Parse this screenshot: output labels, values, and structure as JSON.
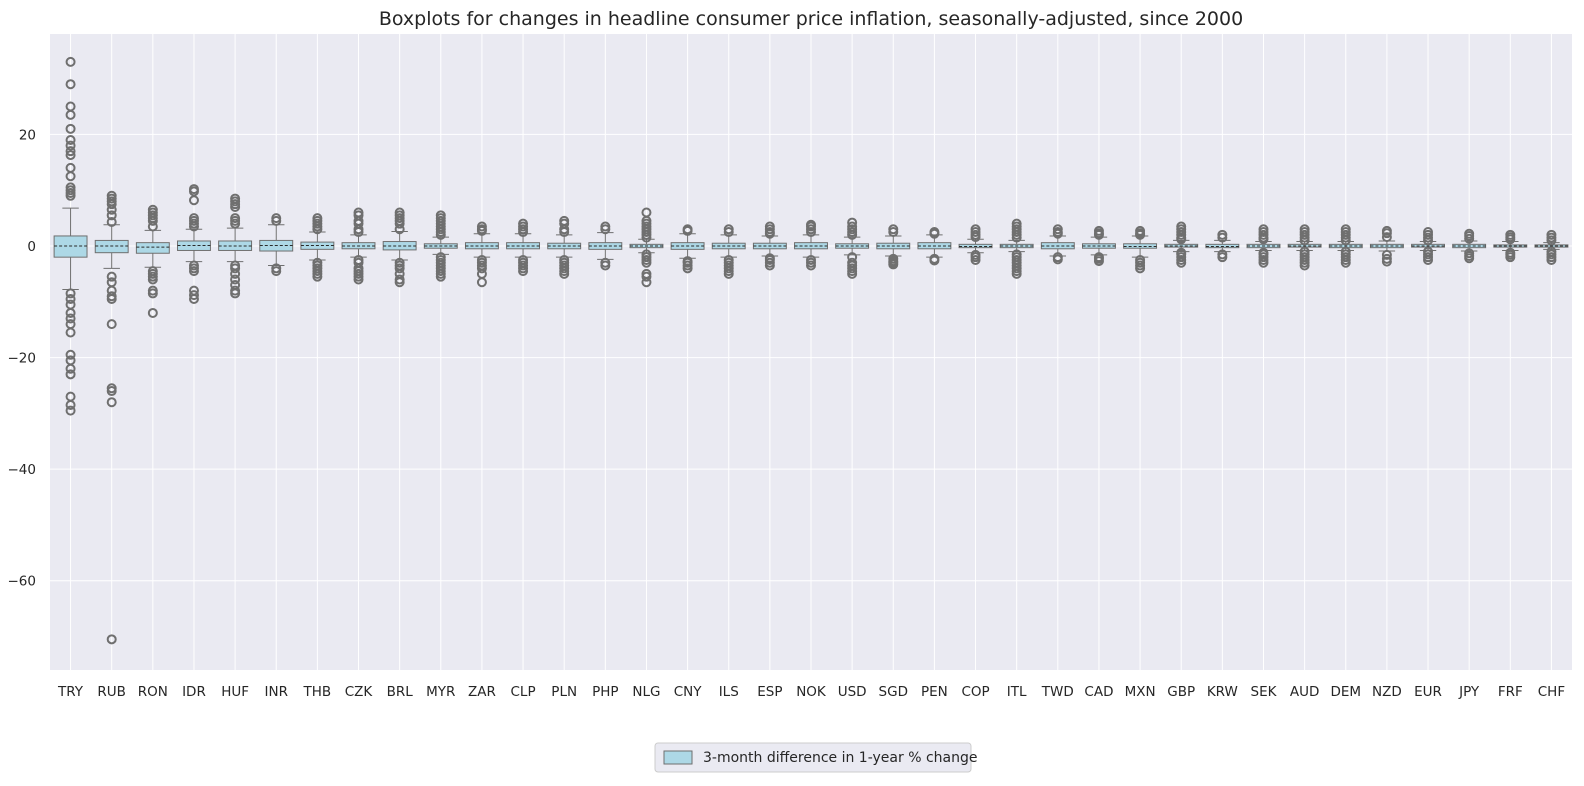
{
  "chart_data": {
    "type": "boxplot",
    "title": "Boxplots for changes in headline consumer price inflation, seasonally-adjusted, since 2000",
    "xlabel": "",
    "ylabel": "",
    "ylim": [
      -76,
      38
    ],
    "yticks": [
      20,
      0,
      -20,
      -40,
      -60
    ],
    "ytick_labels": [
      "20",
      "0",
      "−20",
      "−40",
      "−60"
    ],
    "grid": true,
    "legend": {
      "position": "bottom-center",
      "entries": [
        "3-month difference in 1-year % change"
      ]
    },
    "colors": {
      "box_fill": "#add8e6",
      "box_edge": "#6f6f6f",
      "outlier": "#6f6f6f",
      "median": "#2b2b2b",
      "background": "#eaeaf2",
      "grid": "#ffffff"
    },
    "categories": [
      "TRY",
      "RUB",
      "RON",
      "IDR",
      "HUF",
      "INR",
      "THB",
      "CZK",
      "BRL",
      "MYR",
      "ZAR",
      "CLP",
      "PLN",
      "PHP",
      "NLG",
      "CNY",
      "ILS",
      "ESP",
      "NOK",
      "USD",
      "SGD",
      "PEN",
      "COP",
      "ITL",
      "TWD",
      "CAD",
      "MXN",
      "GBP",
      "KRW",
      "SEK",
      "AUD",
      "DEM",
      "NZD",
      "EUR",
      "JPY",
      "FRF",
      "CHF"
    ],
    "series": [
      {
        "name": "3-month difference in 1-year % change",
        "boxes": [
          {
            "q1": -2.0,
            "median": 0.0,
            "q3": 1.8,
            "whislo": -7.8,
            "whishi": 6.8,
            "fliers": [
              33,
              29,
              25,
              23.5,
              21,
              19,
              18,
              17,
              16.3,
              14,
              12.5,
              10.5,
              10,
              9.5,
              9,
              -8.5,
              -9.5,
              -10.5,
              -12,
              -13,
              -14,
              -15.5,
              -19.5,
              -20.5,
              -22,
              -23,
              -27,
              -28.5,
              -29.5
            ]
          },
          {
            "q1": -1.2,
            "median": 0.0,
            "q3": 1.0,
            "whislo": -4.0,
            "whishi": 3.8,
            "fliers": [
              9,
              8.5,
              8,
              7.5,
              6.5,
              5.5,
              4.3,
              -5.5,
              -6.5,
              -8,
              -9,
              -9.5,
              -14,
              -25.5,
              -26,
              -28,
              -70.5
            ]
          },
          {
            "q1": -1.3,
            "median": -0.2,
            "q3": 0.6,
            "whislo": -3.8,
            "whishi": 2.8,
            "fliers": [
              6.5,
              6,
              5.5,
              5,
              4.5,
              3.5,
              -4.5,
              -5,
              -5.5,
              -6,
              -8,
              -8.5,
              -12
            ]
          },
          {
            "q1": -0.8,
            "median": 0.1,
            "q3": 0.9,
            "whislo": -2.8,
            "whishi": 3.0,
            "fliers": [
              10.2,
              9.8,
              8.2,
              5,
              4.5,
              4,
              3.5,
              -3.5,
              -4,
              -4.5,
              -8,
              -8.8,
              -9.5
            ]
          },
          {
            "q1": -0.8,
            "median": 0.0,
            "q3": 0.9,
            "whislo": -2.8,
            "whishi": 3.2,
            "fliers": [
              8.5,
              8,
              7.5,
              7,
              5,
              4.5,
              4,
              -3.5,
              -4,
              -5,
              -6,
              -7,
              -8,
              -8.5
            ]
          },
          {
            "q1": -0.9,
            "median": 0.1,
            "q3": 1.0,
            "whislo": -3.5,
            "whishi": 3.8,
            "fliers": [
              5,
              4.5,
              -4,
              -4.5
            ]
          },
          {
            "q1": -0.6,
            "median": 0.1,
            "q3": 0.7,
            "whislo": -2.5,
            "whishi": 2.5,
            "fliers": [
              5,
              4.5,
              4,
              3.5,
              3,
              -3,
              -3.5,
              -4,
              -4.5,
              -5,
              -5.5
            ]
          },
          {
            "q1": -0.5,
            "median": 0.0,
            "q3": 0.6,
            "whislo": -2.0,
            "whishi": 2.0,
            "fliers": [
              6,
              5.5,
              4.5,
              4,
              3,
              2.5,
              -2.5,
              -3,
              -4,
              -4.5,
              -5,
              -5.5,
              -6
            ]
          },
          {
            "q1": -0.7,
            "median": 0.0,
            "q3": 0.8,
            "whislo": -2.5,
            "whishi": 2.6,
            "fliers": [
              6,
              5.5,
              5,
              4.5,
              4,
              3,
              -3,
              -3.5,
              -4,
              -5,
              -6,
              -6.5
            ]
          },
          {
            "q1": -0.4,
            "median": 0.0,
            "q3": 0.4,
            "whislo": -1.5,
            "whishi": 1.6,
            "fliers": [
              5.5,
              5,
              4.5,
              4,
              3.5,
              3,
              2.5,
              2,
              -2,
              -2.5,
              -3,
              -3.5,
              -4,
              -4.5,
              -5,
              -5.5
            ]
          },
          {
            "q1": -0.5,
            "median": 0.0,
            "q3": 0.6,
            "whislo": -2.0,
            "whishi": 2.2,
            "fliers": [
              3.5,
              3,
              2.7,
              -2.5,
              -3,
              -3.5,
              -4,
              -5,
              -6.5
            ]
          },
          {
            "q1": -0.5,
            "median": 0.0,
            "q3": 0.6,
            "whislo": -2.0,
            "whishi": 2.2,
            "fliers": [
              4,
              3.5,
              3,
              2.5,
              -2.5,
              -3,
              -3.5,
              -4,
              -4.5
            ]
          },
          {
            "q1": -0.5,
            "median": 0.0,
            "q3": 0.5,
            "whislo": -2.0,
            "whishi": 2.0,
            "fliers": [
              4.5,
              4,
              3,
              2.5,
              -2.5,
              -3,
              -3.5,
              -4,
              -4.5,
              -5
            ]
          },
          {
            "q1": -0.6,
            "median": 0.0,
            "q3": 0.6,
            "whislo": -2.4,
            "whishi": 2.4,
            "fliers": [
              3.5,
              3,
              -3,
              -3.5
            ]
          },
          {
            "q1": -0.3,
            "median": 0.0,
            "q3": 0.3,
            "whislo": -1.2,
            "whishi": 1.2,
            "fliers": [
              6,
              4.5,
              4,
              3.5,
              3,
              2.5,
              2,
              1.5,
              -1.5,
              -2,
              -2.5,
              -3,
              -5,
              -5.5,
              -6.5
            ]
          },
          {
            "q1": -0.6,
            "median": 0.0,
            "q3": 0.6,
            "whislo": -2.2,
            "whishi": 2.2,
            "fliers": [
              3,
              2.7,
              -2.7,
              -3,
              -3.5,
              -4
            ]
          },
          {
            "q1": -0.5,
            "median": 0.0,
            "q3": 0.5,
            "whislo": -2.0,
            "whishi": 2.0,
            "fliers": [
              3,
              2.5,
              -2.5,
              -3,
              -3.5,
              -4,
              -4.5,
              -5
            ]
          },
          {
            "q1": -0.5,
            "median": 0.0,
            "q3": 0.5,
            "whislo": -1.8,
            "whishi": 1.8,
            "fliers": [
              3.5,
              3,
              2.5,
              2.2,
              -2.2,
              -2.5,
              -3,
              -3.5
            ]
          },
          {
            "q1": -0.5,
            "median": 0.0,
            "q3": 0.6,
            "whislo": -2.0,
            "whishi": 2.0,
            "fliers": [
              3.8,
              3.5,
              3,
              2.5,
              -2.5,
              -3,
              -3.5
            ]
          },
          {
            "q1": -0.4,
            "median": 0.0,
            "q3": 0.4,
            "whislo": -1.6,
            "whishi": 1.6,
            "fliers": [
              4.2,
              3.5,
              3,
              2.5,
              2,
              -2,
              -3,
              -3.5,
              -4,
              -4.5,
              -5
            ]
          },
          {
            "q1": -0.5,
            "median": 0.0,
            "q3": 0.5,
            "whislo": -1.8,
            "whishi": 1.8,
            "fliers": [
              3,
              2.5,
              -2.3,
              -2.7,
              -3,
              -3.3
            ]
          },
          {
            "q1": -0.5,
            "median": 0.0,
            "q3": 0.6,
            "whislo": -2.0,
            "whishi": 2.0,
            "fliers": [
              2.5,
              2.2,
              -2.3,
              -2.6
            ]
          },
          {
            "q1": -0.3,
            "median": -0.1,
            "q3": 0.3,
            "whislo": -1.2,
            "whishi": 1.2,
            "fliers": [
              3,
              2.5,
              2,
              1.6,
              -1.6,
              -2,
              -2.5
            ]
          },
          {
            "q1": -0.3,
            "median": 0.0,
            "q3": 0.3,
            "whislo": -1.0,
            "whishi": 1.0,
            "fliers": [
              4,
              3.5,
              3,
              2.5,
              2,
              1.5,
              -1.5,
              -2,
              -2.5,
              -3,
              -3.5,
              -4,
              -4.5,
              -5
            ]
          },
          {
            "q1": -0.5,
            "median": 0.0,
            "q3": 0.6,
            "whislo": -1.8,
            "whishi": 1.8,
            "fliers": [
              3,
              2.5,
              2.2,
              -2,
              -2.4
            ]
          },
          {
            "q1": -0.4,
            "median": 0.0,
            "q3": 0.4,
            "whislo": -1.6,
            "whishi": 1.6,
            "fliers": [
              2.7,
              2.3,
              2,
              -2,
              -2.3,
              -2.7
            ]
          },
          {
            "q1": -0.4,
            "median": -0.1,
            "q3": 0.4,
            "whislo": -2.0,
            "whishi": 1.8,
            "fliers": [
              2.7,
              2.3,
              2,
              -2.5,
              -3,
              -3.5,
              -4
            ]
          },
          {
            "q1": -0.2,
            "median": 0.0,
            "q3": 0.3,
            "whislo": -1.0,
            "whishi": 1.0,
            "fliers": [
              3.5,
              3,
              2.5,
              2,
              1.5,
              1.2,
              -1.2,
              -1.5,
              -2,
              -2.5,
              -3
            ]
          },
          {
            "q1": -0.3,
            "median": -0.1,
            "q3": 0.3,
            "whislo": -1.0,
            "whishi": 1.0,
            "fliers": [
              2,
              1.5,
              -1.5,
              -2
            ]
          },
          {
            "q1": -0.3,
            "median": 0.0,
            "q3": 0.3,
            "whislo": -0.8,
            "whishi": 0.8,
            "fliers": [
              3,
              2.5,
              2,
              1.5,
              1.2,
              -1.2,
              -1.5,
              -2,
              -2.5,
              -3
            ]
          },
          {
            "q1": -0.2,
            "median": 0.0,
            "q3": 0.3,
            "whislo": -0.8,
            "whishi": 0.8,
            "fliers": [
              3,
              2.5,
              2,
              1.5,
              1,
              -1,
              -1.5,
              -2,
              -2.5,
              -3,
              -3.5
            ]
          },
          {
            "q1": -0.3,
            "median": 0.0,
            "q3": 0.3,
            "whislo": -0.8,
            "whishi": 0.8,
            "fliers": [
              3,
              2.5,
              2,
              1.5,
              1,
              -1,
              -1.5,
              -2,
              -2.5,
              -3
            ]
          },
          {
            "q1": -0.3,
            "median": 0.0,
            "q3": 0.3,
            "whislo": -0.9,
            "whishi": 0.9,
            "fliers": [
              2.7,
              2.3,
              1.6,
              -1.6,
              -2.3,
              -2.8
            ]
          },
          {
            "q1": -0.2,
            "median": 0.0,
            "q3": 0.3,
            "whislo": -0.8,
            "whishi": 0.8,
            "fliers": [
              2.5,
              2,
              1.5,
              1,
              -1,
              -1.5,
              -2,
              -2.5
            ]
          },
          {
            "q1": -0.3,
            "median": 0.0,
            "q3": 0.3,
            "whislo": -0.9,
            "whishi": 0.9,
            "fliers": [
              2.2,
              1.8,
              1.3,
              -1.3,
              -1.8,
              -2.2
            ]
          },
          {
            "q1": -0.2,
            "median": 0.0,
            "q3": 0.2,
            "whislo": -0.8,
            "whishi": 0.8,
            "fliers": [
              2,
              1.6,
              1.2,
              -1.2,
              -1.6,
              -2
            ]
          },
          {
            "q1": -0.2,
            "median": 0.0,
            "q3": 0.2,
            "whislo": -0.6,
            "whishi": 0.6,
            "fliers": [
              2,
              1.5,
              1,
              -1,
              -1.5,
              -2,
              -2.5
            ]
          }
        ]
      }
    ]
  }
}
